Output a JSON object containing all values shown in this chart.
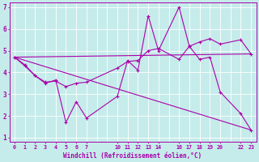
{
  "xlabel": "Windchill (Refroidissement éolien,°C)",
  "background_color": "#c5ecea",
  "line_color": "#aa00aa",
  "grid_color": "#aadddd",
  "xlim": [
    -0.5,
    23.5
  ],
  "ylim": [
    0.8,
    7.2
  ],
  "xtick_positions": [
    0,
    1,
    2,
    3,
    4,
    5,
    6,
    7,
    10,
    11,
    12,
    13,
    14,
    16,
    17,
    18,
    19,
    20,
    22,
    23
  ],
  "xtick_labels": [
    "0",
    "1",
    "2",
    "3",
    "4",
    "5",
    "6",
    "7",
    "10",
    "11",
    "12",
    "13",
    "14",
    "16",
    "17",
    "18",
    "19",
    "20",
    "22",
    "23"
  ],
  "yticks": [
    1,
    2,
    3,
    4,
    5,
    6,
    7
  ],
  "line1": {
    "x": [
      0,
      1,
      2,
      3,
      4,
      5,
      6,
      7,
      10,
      11,
      12,
      13,
      14,
      16,
      17,
      18,
      19,
      20,
      22,
      23
    ],
    "y": [
      4.7,
      4.35,
      3.85,
      3.55,
      3.6,
      3.35,
      3.5,
      3.55,
      4.2,
      4.5,
      4.55,
      5.0,
      5.1,
      4.6,
      5.2,
      5.4,
      5.55,
      5.3,
      5.5,
      4.85
    ]
  },
  "line2": {
    "x": [
      0,
      1,
      2,
      3,
      4,
      5,
      6,
      7,
      10,
      11,
      12,
      13,
      14,
      16,
      17,
      18,
      19,
      20,
      22,
      23
    ],
    "y": [
      4.7,
      4.3,
      3.85,
      3.5,
      3.65,
      1.7,
      2.65,
      1.9,
      2.9,
      4.55,
      4.1,
      6.6,
      5.0,
      7.0,
      5.2,
      4.6,
      4.7,
      3.1,
      2.1,
      1.35
    ]
  },
  "line3": {
    "x": [
      0,
      23
    ],
    "y": [
      4.7,
      1.35
    ]
  },
  "line4": {
    "x": [
      0,
      23
    ],
    "y": [
      4.7,
      4.85
    ]
  }
}
